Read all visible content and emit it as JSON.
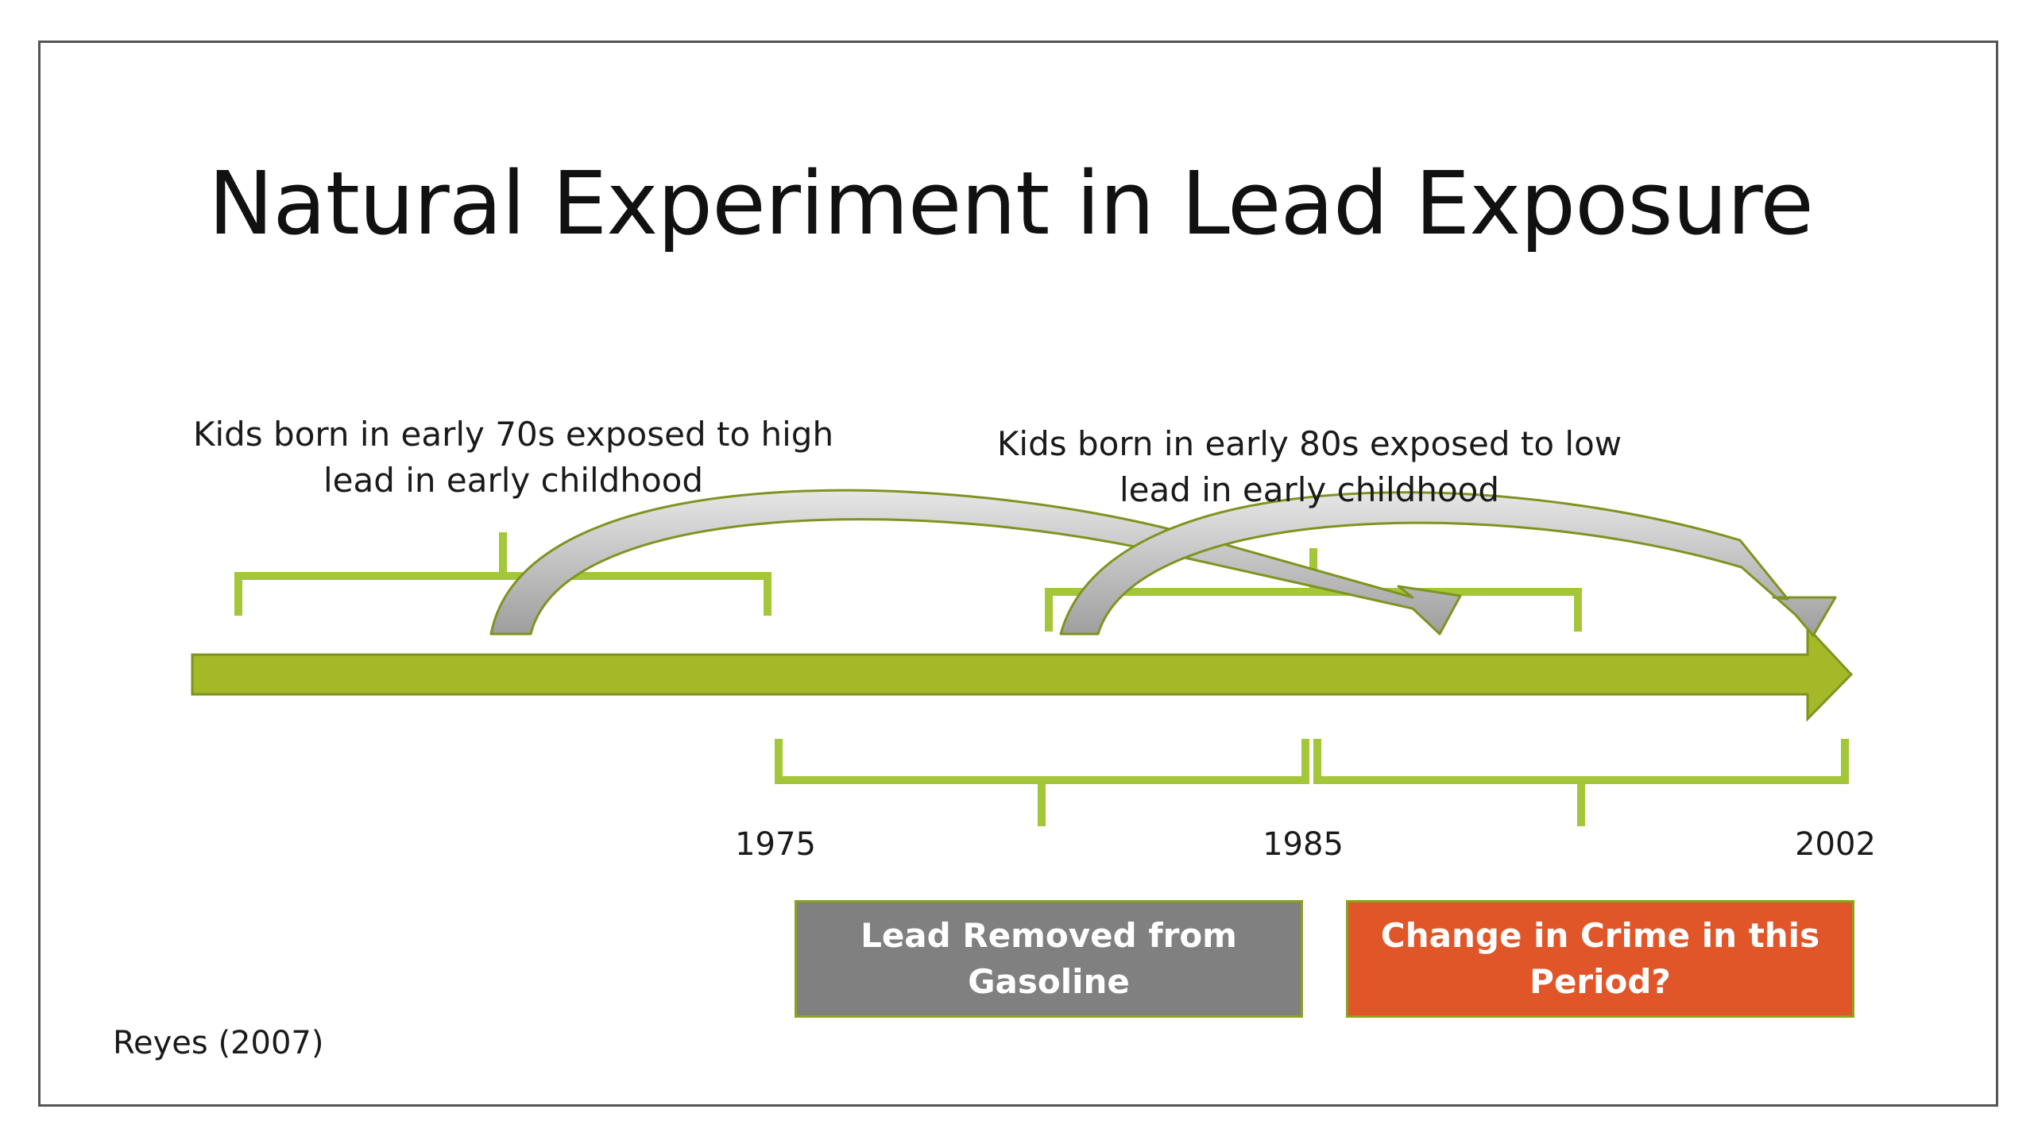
{
  "title": "Natural Experiment in Lead Exposure",
  "annotations": {
    "early_70s": "Kids born in early 70s exposed to high lead in early childhood",
    "early_80s": "Kids born in early 80s exposed to low lead in early childhood"
  },
  "timeline": {
    "years": [
      "1975",
      "1985",
      "2002"
    ]
  },
  "boxes": {
    "lead_removed": "Lead Removed from Gasoline",
    "crime_change": "Change in Crime in this Period?"
  },
  "citation": "Reyes (2007)",
  "colors": {
    "timeline_green": "#a4b828",
    "bracket_green": "#a4c639",
    "arrow_gray": "#a6a6a6",
    "box_gray": "#808080",
    "box_orange": "#e15628"
  }
}
